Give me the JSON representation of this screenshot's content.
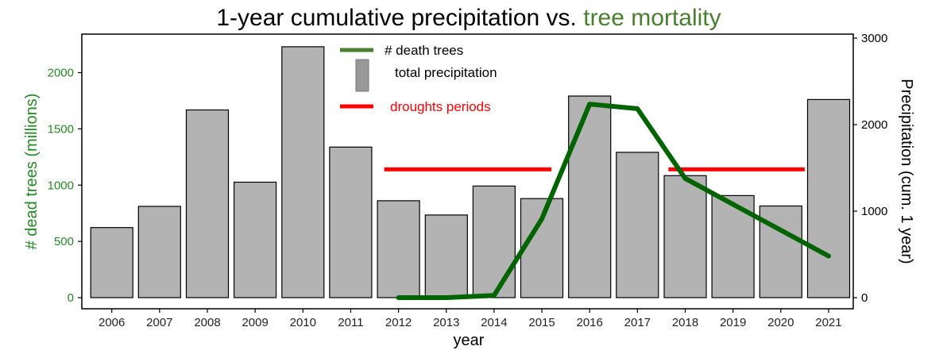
{
  "chart_data": {
    "type": "bar",
    "title_part1": "1-year cumulative precipitation vs. ",
    "title_part2": "tree mortality",
    "xlabel": "year",
    "ylabel_left": "# dead trees (millions)",
    "ylabel_right": "Precipitation (cum. 1 year)",
    "categories": [
      "2006",
      "2007",
      "2008",
      "2009",
      "2010",
      "2011",
      "2012",
      "2013",
      "2014",
      "2015",
      "2016",
      "2017",
      "2018",
      "2019",
      "2020",
      "2021"
    ],
    "ylim_left": [
      0,
      2300
    ],
    "yticks_left": [
      0,
      500,
      1000,
      1500,
      2000
    ],
    "ylim_right": [
      0,
      3000
    ],
    "yticks_right": [
      0,
      1000,
      2000,
      3000
    ],
    "series": [
      {
        "name": "total precipitation",
        "type": "bar",
        "axis": "right",
        "color": "#b3b3b3",
        "values": [
          810,
          1055,
          2170,
          1335,
          2900,
          1740,
          1120,
          955,
          1290,
          1145,
          2330,
          1680,
          1410,
          1180,
          1060,
          2290
        ]
      },
      {
        "name": "# death trees",
        "type": "line",
        "axis": "left",
        "color": "#006400",
        "x": [
          "2012",
          "2013",
          "2014",
          "2015",
          "2016",
          "2017",
          "2018",
          "2021"
        ],
        "values": [
          0,
          0,
          20,
          700,
          1720,
          1680,
          1060,
          370
        ]
      }
    ],
    "drought_periods": {
      "name": "droughts periods",
      "color": "#ff0000",
      "level_left": 1140,
      "periods": [
        [
          "2011.7",
          "2015.2"
        ],
        [
          "2017.65",
          "2020.5"
        ]
      ]
    },
    "legend_position": "top-center",
    "colors": {
      "title_accent": "#4a7f2e",
      "left_axis": "#228b22",
      "line": "#006400",
      "drought": "#ff0000",
      "bar_fill": "#b3b3b3",
      "legend_bar_fill": "#999999"
    }
  }
}
